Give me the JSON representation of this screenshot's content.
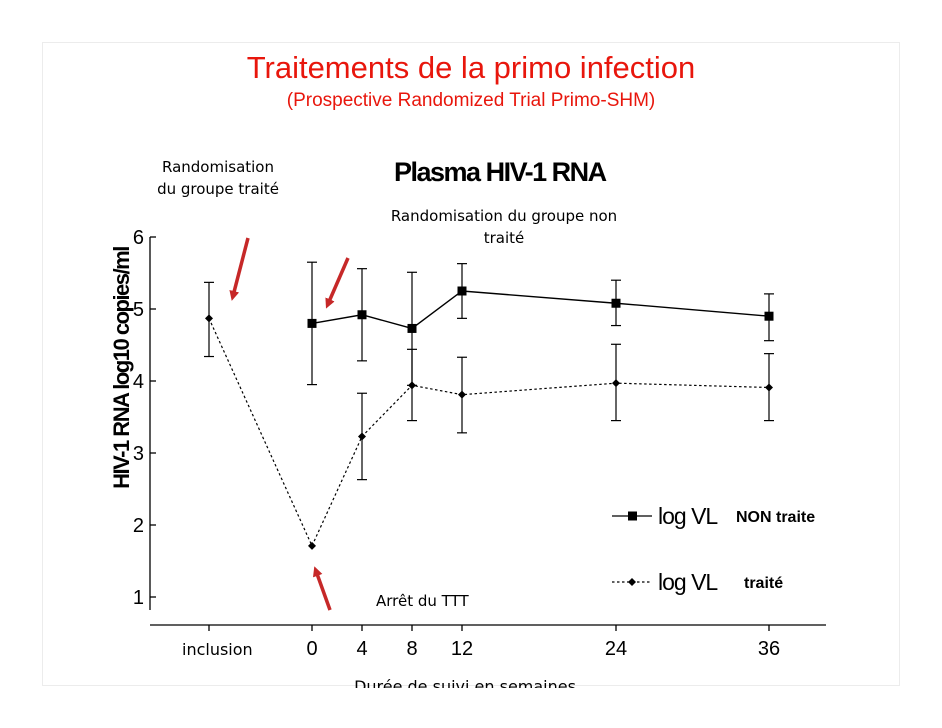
{
  "slide": {
    "title": "Traitements de la primo infection",
    "subtitle": "(Prospective Randomized Trial Primo-SHM)"
  },
  "annotations": {
    "treated_line1": "Randomisation",
    "treated_line2": "du groupe  traité",
    "untreated_line1": "Randomisation  du groupe non",
    "untreated_line2": "traité",
    "stop": "Arrêt du TTT"
  },
  "colors": {
    "title": "#e8160c",
    "arrow": "#c62828",
    "series": "#000000"
  },
  "chart_data": {
    "type": "line",
    "title": "Plasma HIV-1 RNA",
    "xlabel": "Durée de suivi  en semaines",
    "ylabel": "HIV-1 RNA log10 copies/ml",
    "ylim": [
      1,
      6
    ],
    "yticks": [
      "1",
      "2",
      "3",
      "4",
      "5",
      "6"
    ],
    "xticks": [
      {
        "x": -4,
        "label": "inclusion"
      },
      {
        "x": 0,
        "label": "0"
      },
      {
        "x": 4,
        "label": "4"
      },
      {
        "x": 8,
        "label": "8"
      },
      {
        "x": 12,
        "label": "12"
      },
      {
        "x": 24,
        "label": "24"
      },
      {
        "x": 36,
        "label": "36"
      }
    ],
    "legend_position": "bottom-right",
    "series": [
      {
        "name": "log VL",
        "legend_tag": "NON traite",
        "marker": "square",
        "line": "solid",
        "points": [
          {
            "x": 0,
            "y": 4.8,
            "err_low": 3.95,
            "err_high": 5.65
          },
          {
            "x": 4,
            "y": 4.92,
            "err_low": 4.28,
            "err_high": 5.56
          },
          {
            "x": 8,
            "y": 4.73,
            "err_low": 3.94,
            "err_high": 5.51
          },
          {
            "x": 12,
            "y": 5.25,
            "err_low": 4.87,
            "err_high": 5.63
          },
          {
            "x": 24,
            "y": 5.08,
            "err_low": 4.77,
            "err_high": 5.4
          },
          {
            "x": 36,
            "y": 4.9,
            "err_low": 4.56,
            "err_high": 5.21
          }
        ]
      },
      {
        "name": "log VL",
        "legend_tag": "traité",
        "marker": "diamond",
        "line": "dotted",
        "points": [
          {
            "x": -4,
            "y": 4.87,
            "err_low": 4.34,
            "err_high": 5.37
          },
          {
            "x": 0,
            "y": 1.71,
            "err_low": 1.71,
            "err_high": 1.71
          },
          {
            "x": 4,
            "y": 3.23,
            "err_low": 2.63,
            "err_high": 3.83
          },
          {
            "x": 8,
            "y": 3.94,
            "err_low": 3.45,
            "err_high": 4.44
          },
          {
            "x": 12,
            "y": 3.81,
            "err_low": 3.28,
            "err_high": 4.33
          },
          {
            "x": 24,
            "y": 3.97,
            "err_low": 3.45,
            "err_high": 4.51
          },
          {
            "x": 36,
            "y": 3.91,
            "err_low": 3.45,
            "err_high": 4.38
          }
        ]
      }
    ]
  }
}
